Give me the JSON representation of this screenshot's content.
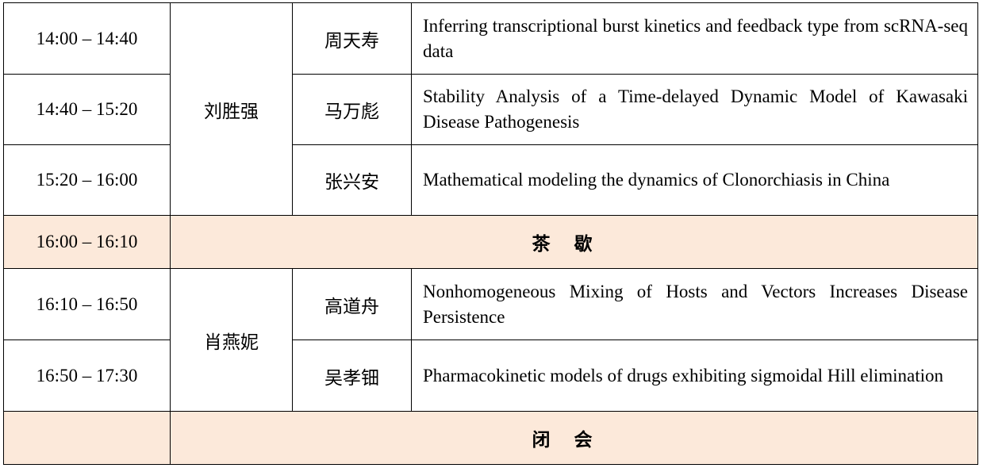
{
  "schedule": {
    "rows": [
      {
        "time": "14:00 – 14:40",
        "chair": "刘胜强",
        "speaker": "周天寿",
        "title": "Inferring transcriptional burst kinetics and feedback type from scRNA-seq data"
      },
      {
        "time": "14:40 – 15:20",
        "speaker": "马万彪",
        "title": "Stability Analysis of a Time-delayed Dynamic Model of Kawasaki Disease Pathogenesis"
      },
      {
        "time": "15:20 – 16:00",
        "speaker": "张兴安",
        "title": "Mathematical modeling the dynamics of Clonorchiasis in China"
      },
      {
        "time": "16:10 – 16:50",
        "chair": "肖燕妮",
        "speaker": "高道舟",
        "title": "Nonhomogeneous Mixing of Hosts and Vectors Increases Disease Persistence"
      },
      {
        "time": "16:50 – 17:30",
        "speaker": "吴孝钿",
        "title": "Pharmacokinetic models of drugs exhibiting sigmoidal Hill elimination"
      }
    ],
    "tea_break": {
      "time": "16:00 – 16:10",
      "label": "茶歇"
    },
    "closing": {
      "time": "",
      "label": "闭会"
    }
  },
  "colors": {
    "highlight_row": "#fce9da",
    "border": "#000000"
  }
}
